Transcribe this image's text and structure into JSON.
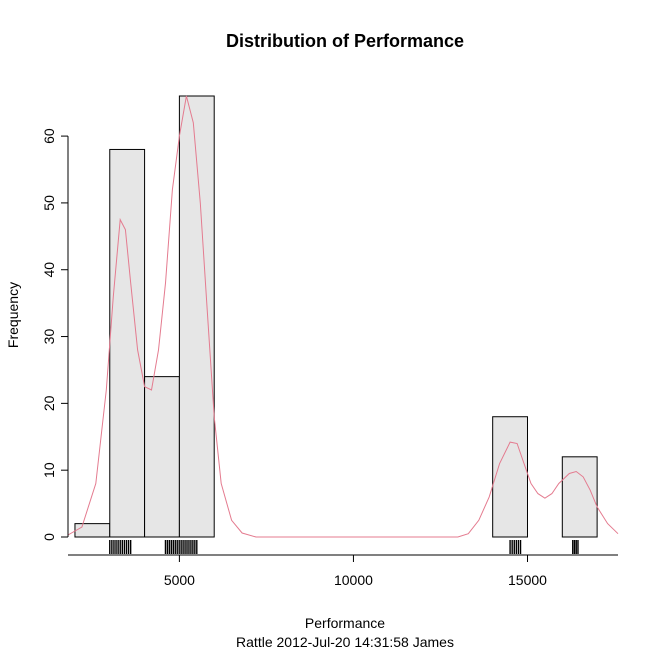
{
  "chart_data": {
    "type": "bar",
    "subtype": "histogram",
    "title": "Distribution of Performance",
    "xlabel": "Performance",
    "ylabel": "Frequency",
    "subtitle": "Rattle 2012-Jul-20 14:31:58 James",
    "bins": [
      {
        "start": 2000,
        "end": 3000,
        "count": 2
      },
      {
        "start": 3000,
        "end": 4000,
        "count": 58
      },
      {
        "start": 4000,
        "end": 5000,
        "count": 24
      },
      {
        "start": 5000,
        "end": 6000,
        "count": 66
      },
      {
        "start": 14000,
        "end": 15000,
        "count": 18
      },
      {
        "start": 16000,
        "end": 17000,
        "count": 12
      }
    ],
    "xlim": [
      1800,
      17600
    ],
    "ylim": [
      0,
      66
    ],
    "x_ticks": [
      5000,
      10000,
      15000
    ],
    "x_tick_labels": [
      "5000",
      "10000",
      "15000"
    ],
    "y_ticks": [
      0,
      10,
      20,
      30,
      40,
      50,
      60
    ],
    "y_tick_labels": [
      "0",
      "10",
      "20",
      "30",
      "40",
      "50",
      "60"
    ],
    "density_curve": {
      "color": "#E47B8F",
      "points": [
        [
          1800,
          0.3
        ],
        [
          2200,
          1.5
        ],
        [
          2600,
          8
        ],
        [
          2900,
          22
        ],
        [
          3100,
          36
        ],
        [
          3300,
          47.5
        ],
        [
          3450,
          46
        ],
        [
          3600,
          38
        ],
        [
          3800,
          28
        ],
        [
          4000,
          22.5
        ],
        [
          4200,
          22
        ],
        [
          4400,
          28
        ],
        [
          4600,
          38
        ],
        [
          4800,
          52
        ],
        [
          5000,
          60
        ],
        [
          5200,
          66
        ],
        [
          5400,
          62
        ],
        [
          5600,
          50
        ],
        [
          5800,
          34
        ],
        [
          6000,
          18
        ],
        [
          6200,
          8
        ],
        [
          6500,
          2.5
        ],
        [
          6800,
          0.6
        ],
        [
          7200,
          0
        ],
        [
          10000,
          0
        ],
        [
          13000,
          0
        ],
        [
          13300,
          0.5
        ],
        [
          13600,
          2.5
        ],
        [
          13900,
          6
        ],
        [
          14200,
          11
        ],
        [
          14500,
          14.2
        ],
        [
          14700,
          14
        ],
        [
          14900,
          11
        ],
        [
          15100,
          8
        ],
        [
          15300,
          6.5
        ],
        [
          15500,
          5.8
        ],
        [
          15700,
          6.5
        ],
        [
          15900,
          8
        ],
        [
          16200,
          9.5
        ],
        [
          16400,
          9.8
        ],
        [
          16600,
          9
        ],
        [
          16800,
          7
        ],
        [
          17000,
          4.5
        ],
        [
          17300,
          2
        ],
        [
          17600,
          0.5
        ]
      ]
    },
    "rug": {
      "clusters": [
        {
          "from": 3000,
          "to": 3600
        },
        {
          "from": 4600,
          "to": 5500
        },
        {
          "from": 14500,
          "to": 14800
        },
        {
          "from": 16300,
          "to": 16450
        }
      ]
    },
    "colors": {
      "bar_fill": "#E6E6E6",
      "bar_stroke": "#000000",
      "axis": "#000000"
    }
  }
}
